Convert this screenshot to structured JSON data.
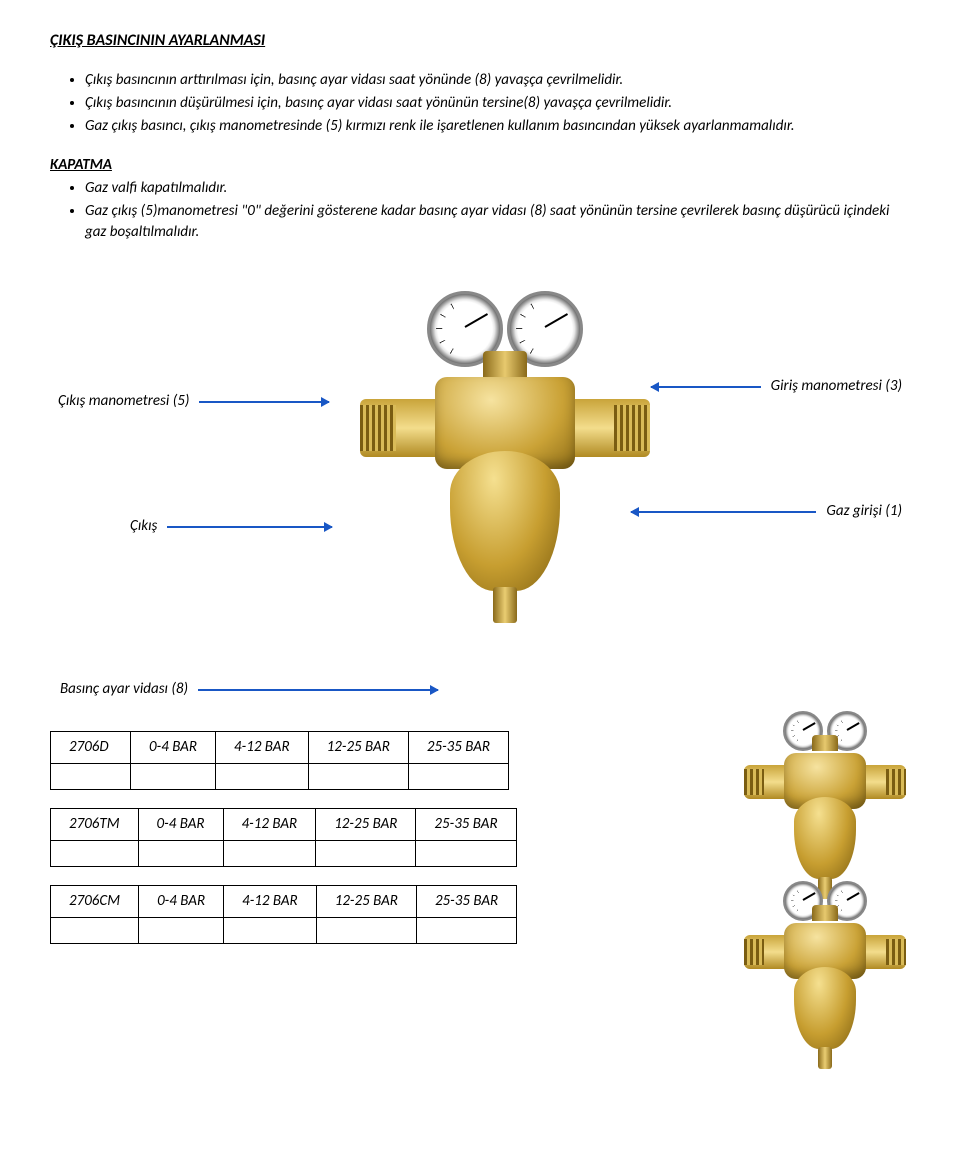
{
  "heading1": "ÇIKIŞ BASINCININ AYARLANMASI",
  "intro_bullets": [
    "Çıkış basıncının arttırılması için, basınç ayar vidası saat yönünde (8) yavaşça çevrilmelidir.",
    "Çıkış basıncının düşürülmesi için,  basınç ayar vidası saat yönünün tersine(8) yavaşça çevrilmelidir.",
    "Gaz çıkış basıncı, çıkış manometresinde (5) kırmızı renk ile işaretlenen kullanım basıncından yüksek ayarlanmamalıdır."
  ],
  "heading2": "KAPATMA",
  "kapatma_bullets": [
    "Gaz valfi kapatılmalıdır.",
    "Gaz çıkış (5)manometresi \"0\" değerini gösterene kadar basınç ayar vidası (8) saat yönünün tersine çevrilerek basınç düşürücü içindeki gaz boşaltılmalıdır."
  ],
  "callouts": {
    "out_manometer": "Çıkış manometresi (5)",
    "in_manometer": "Giriş manometresi (3)",
    "exit": "Çıkış",
    "gas_in": "Gaz girişi (1)",
    "adj_screw": "Basınç ayar vidası  (8)"
  },
  "tables": [
    {
      "model": "2706D",
      "ranges": [
        "0-4 BAR",
        "4-12 BAR",
        "12-25 BAR",
        "25-35 BAR"
      ]
    },
    {
      "model": "2706TM",
      "ranges": [
        "0-4 BAR",
        "4-12 BAR",
        "12-25 BAR",
        "25-35 BAR"
      ]
    },
    {
      "model": "2706CM",
      "ranges": [
        "0-4 BAR",
        "4-12 BAR",
        "12-25 BAR",
        "25-35 BAR"
      ]
    }
  ],
  "callout_color": "#1957c5"
}
